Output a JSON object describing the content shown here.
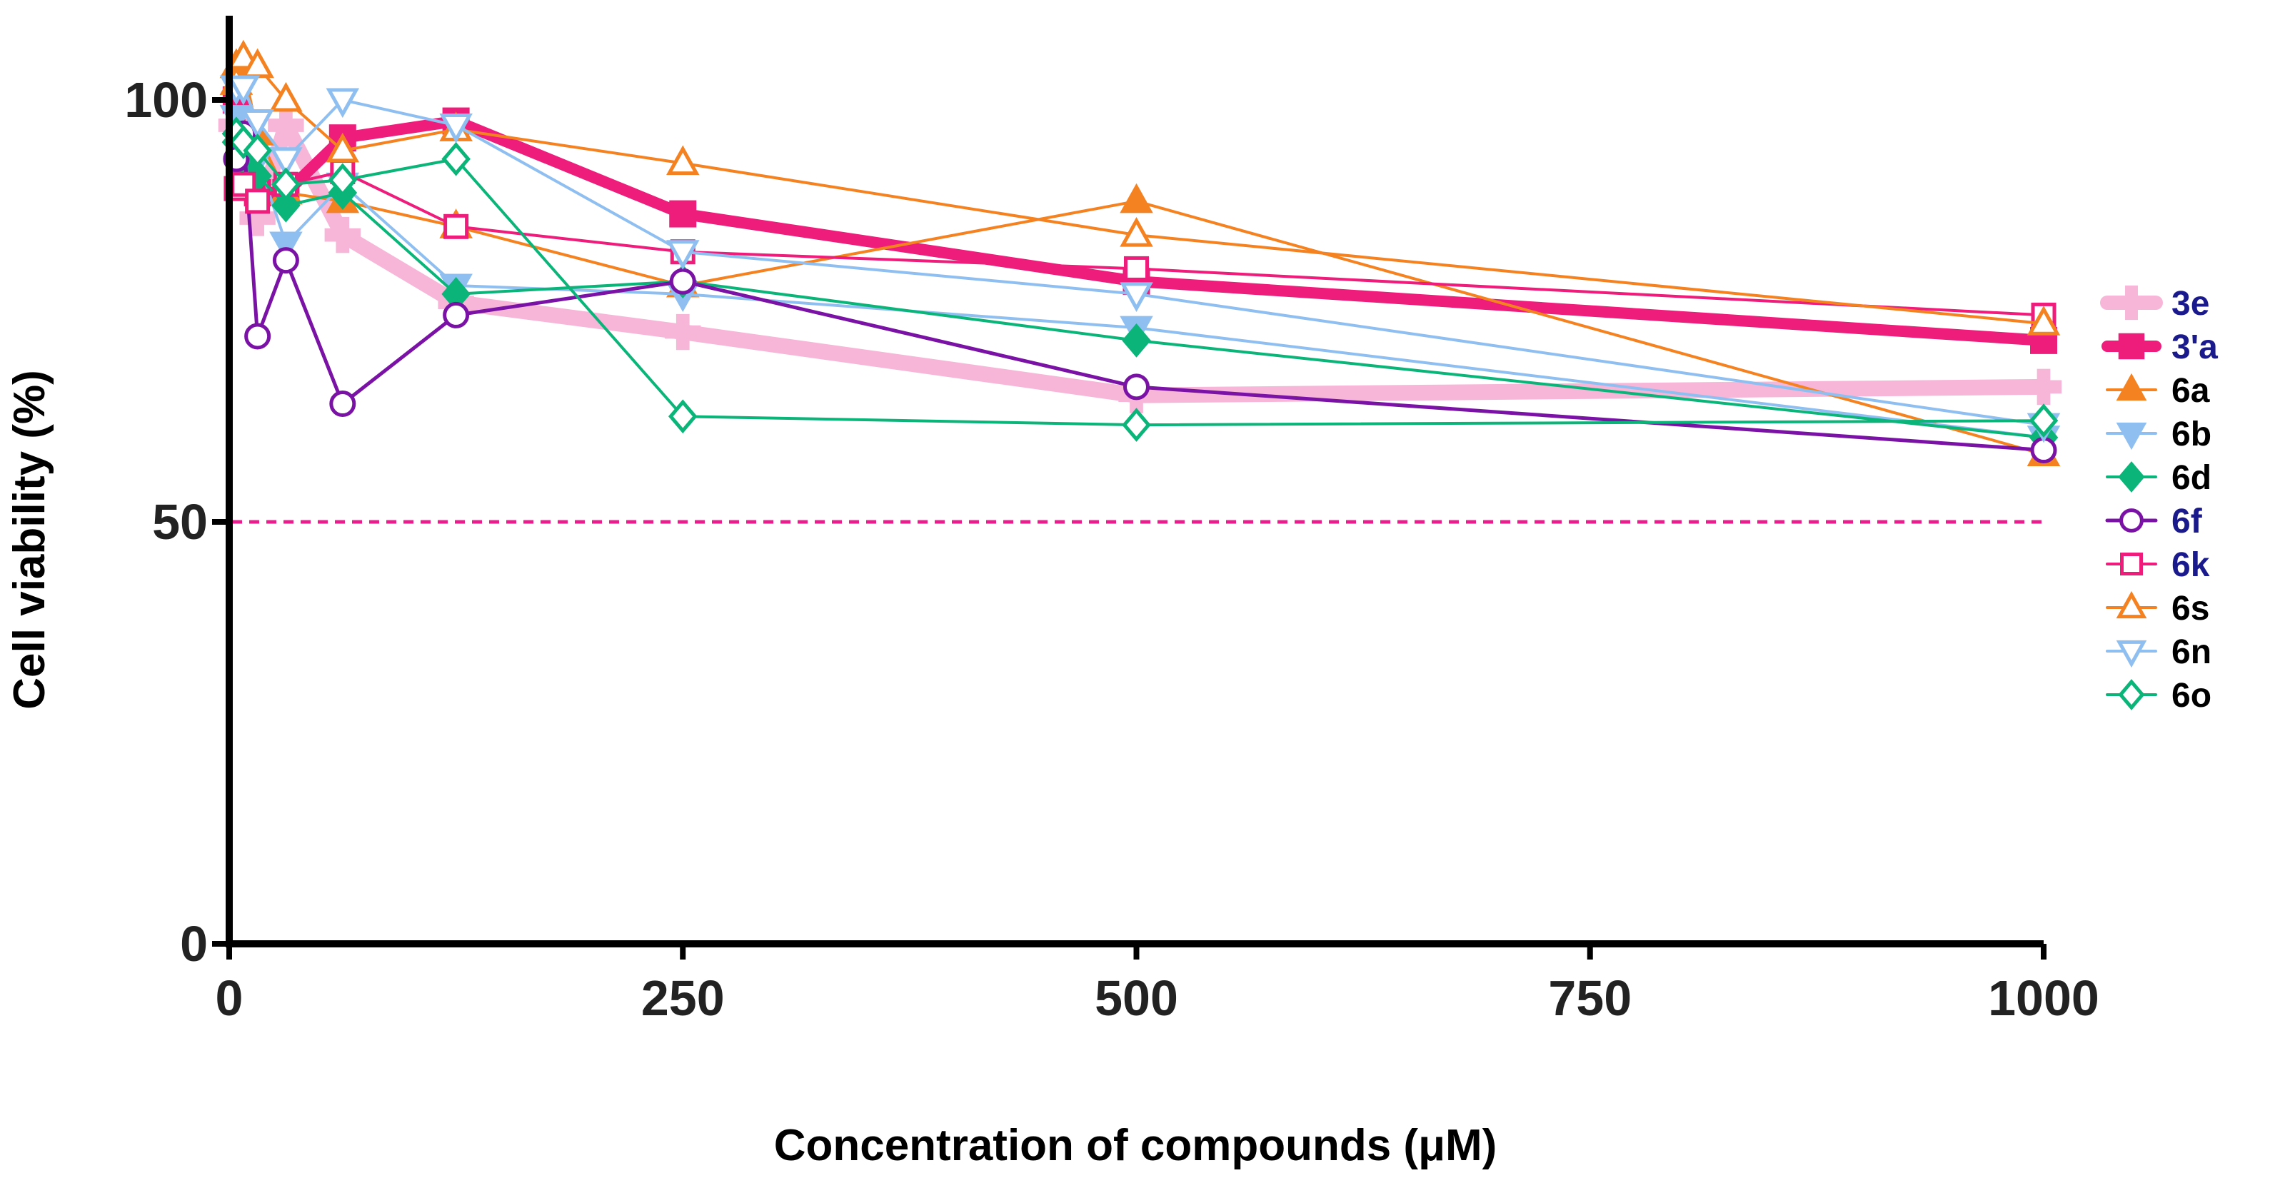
{
  "chart_data": {
    "type": "line",
    "title": "",
    "xlabel": "Concentration of compounds (μM)",
    "ylabel": "Cell viability (%)",
    "xlim": [
      0,
      1000
    ],
    "ylim": [
      0,
      110
    ],
    "xticks": [
      0,
      250,
      500,
      750,
      1000
    ],
    "xtick_labels": [
      "0",
      "250",
      "500",
      "750",
      "1000"
    ],
    "yticks": [
      0,
      50,
      100
    ],
    "ytick_labels": [
      "0",
      "50",
      "100"
    ],
    "reference_line": {
      "y": 50,
      "style": "dashed",
      "color": "#e91e8c"
    },
    "legend_position": "right",
    "x": [
      3.9,
      7.8,
      15.6,
      31.25,
      62.5,
      125,
      250,
      500,
      1000
    ],
    "series": [
      {
        "name": "3e",
        "color": "#f7b6d8",
        "label_color": "#1a1a8c",
        "marker": "plus",
        "filled": true,
        "width": 22,
        "values": [
          97,
          93,
          86,
          97,
          84,
          76,
          72.5,
          65,
          66
        ]
      },
      {
        "name": "3'a",
        "color": "#ee1c7a",
        "label_color": "#1a1a8c",
        "marker": "square",
        "filled": true,
        "width": 16,
        "values": [
          100,
          95,
          89,
          89,
          95.5,
          97.5,
          86.5,
          78.5,
          71.5
        ]
      },
      {
        "name": "6a",
        "color": "#f58220",
        "label_color": "#000000",
        "marker": "triangle-up",
        "filled": true,
        "width": 4,
        "values": [
          104,
          104,
          96,
          89,
          88,
          85,
          78,
          88,
          58
        ]
      },
      {
        "name": "6b",
        "color": "#8fbff0",
        "label_color": "#000000",
        "marker": "triangle-down",
        "filled": true,
        "width": 4,
        "values": [
          98,
          96,
          93,
          83,
          90,
          78,
          77,
          73,
          60
        ]
      },
      {
        "name": "6d",
        "color": "#0bb57a",
        "label_color": "#000000",
        "marker": "diamond",
        "filled": true,
        "width": 4,
        "values": [
          95,
          93,
          91,
          87.5,
          89,
          77,
          78.5,
          71.5,
          60
        ]
      },
      {
        "name": "6f",
        "color": "#7a12a5",
        "label_color": "#1a1a8c",
        "marker": "circle",
        "filled": false,
        "width": 5,
        "values": [
          93,
          96,
          72,
          81,
          64,
          74.5,
          78.5,
          66,
          58.5
        ]
      },
      {
        "name": "6k",
        "color": "#ee1c7a",
        "label_color": "#1a1a8c",
        "marker": "square",
        "filled": false,
        "width": 4,
        "values": [
          89.5,
          90,
          88,
          90,
          91.5,
          85,
          82,
          80,
          74.5
        ]
      },
      {
        "name": "6s",
        "color": "#f58220",
        "label_color": "#000000",
        "marker": "triangle-up",
        "filled": false,
        "width": 4,
        "values": [
          102,
          105,
          104,
          100,
          94,
          96.5,
          92.5,
          84,
          73.5
        ]
      },
      {
        "name": "6n",
        "color": "#8fbff0",
        "label_color": "#000000",
        "marker": "triangle-down",
        "filled": false,
        "width": 4,
        "values": [
          101.5,
          101.5,
          97.5,
          93,
          100,
          97,
          82,
          77,
          61.5
        ]
      },
      {
        "name": "6o",
        "color": "#0bb57a",
        "label_color": "#000000",
        "marker": "diamond",
        "filled": false,
        "width": 4,
        "values": [
          96,
          95,
          94,
          90,
          90.5,
          93,
          62.5,
          61.5,
          62
        ]
      }
    ]
  }
}
